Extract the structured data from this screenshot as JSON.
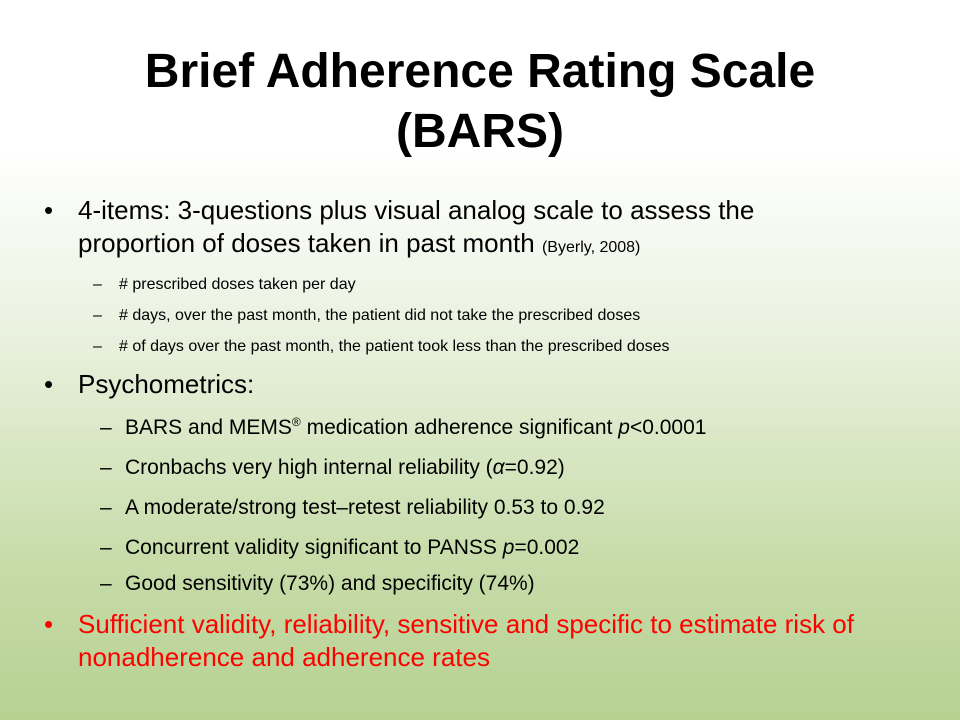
{
  "title": {
    "line1": "Brief Adherence Rating Scale",
    "line2": "(BARS)"
  },
  "bullets": {
    "items_main": {
      "text": "4-items: 3-questions plus visual analog scale to assess the proportion of doses taken in past month",
      "citation": "(Byerly, 2008)"
    },
    "items_sub": [
      "# prescribed doses taken per day",
      "# days, over the past month, the patient did not take the prescribed doses",
      "# of days over the past month, the patient took less than the prescribed doses"
    ],
    "psychometrics_main": "Psychometrics:",
    "psychometrics_sub": {
      "p1_a": "BARS and MEMS",
      "p1_reg": "®",
      "p1_b": " medication adherence significant ",
      "p1_p": "p",
      "p1_c": "<0.0001",
      "p2_a": "Cronbachs very high internal reliability (",
      "p2_alpha": "α",
      "p2_b": "=0.92)",
      "p3": "A moderate/strong test–retest reliability 0.53 to 0.92",
      "p4_a": "Concurrent validity significant to PANSS ",
      "p4_p": "p",
      "p4_b": "=0.002",
      "p5": "Good sensitivity (73%) and specificity (74%)"
    },
    "conclusion": "Sufficient validity, reliability, sensitive and specific to estimate risk of nonadherence and adherence rates"
  },
  "symbols": {
    "bullet": "•",
    "dash": "–"
  },
  "colors": {
    "conclusion": "#ff0000",
    "background_bottom": "#b6d192"
  }
}
